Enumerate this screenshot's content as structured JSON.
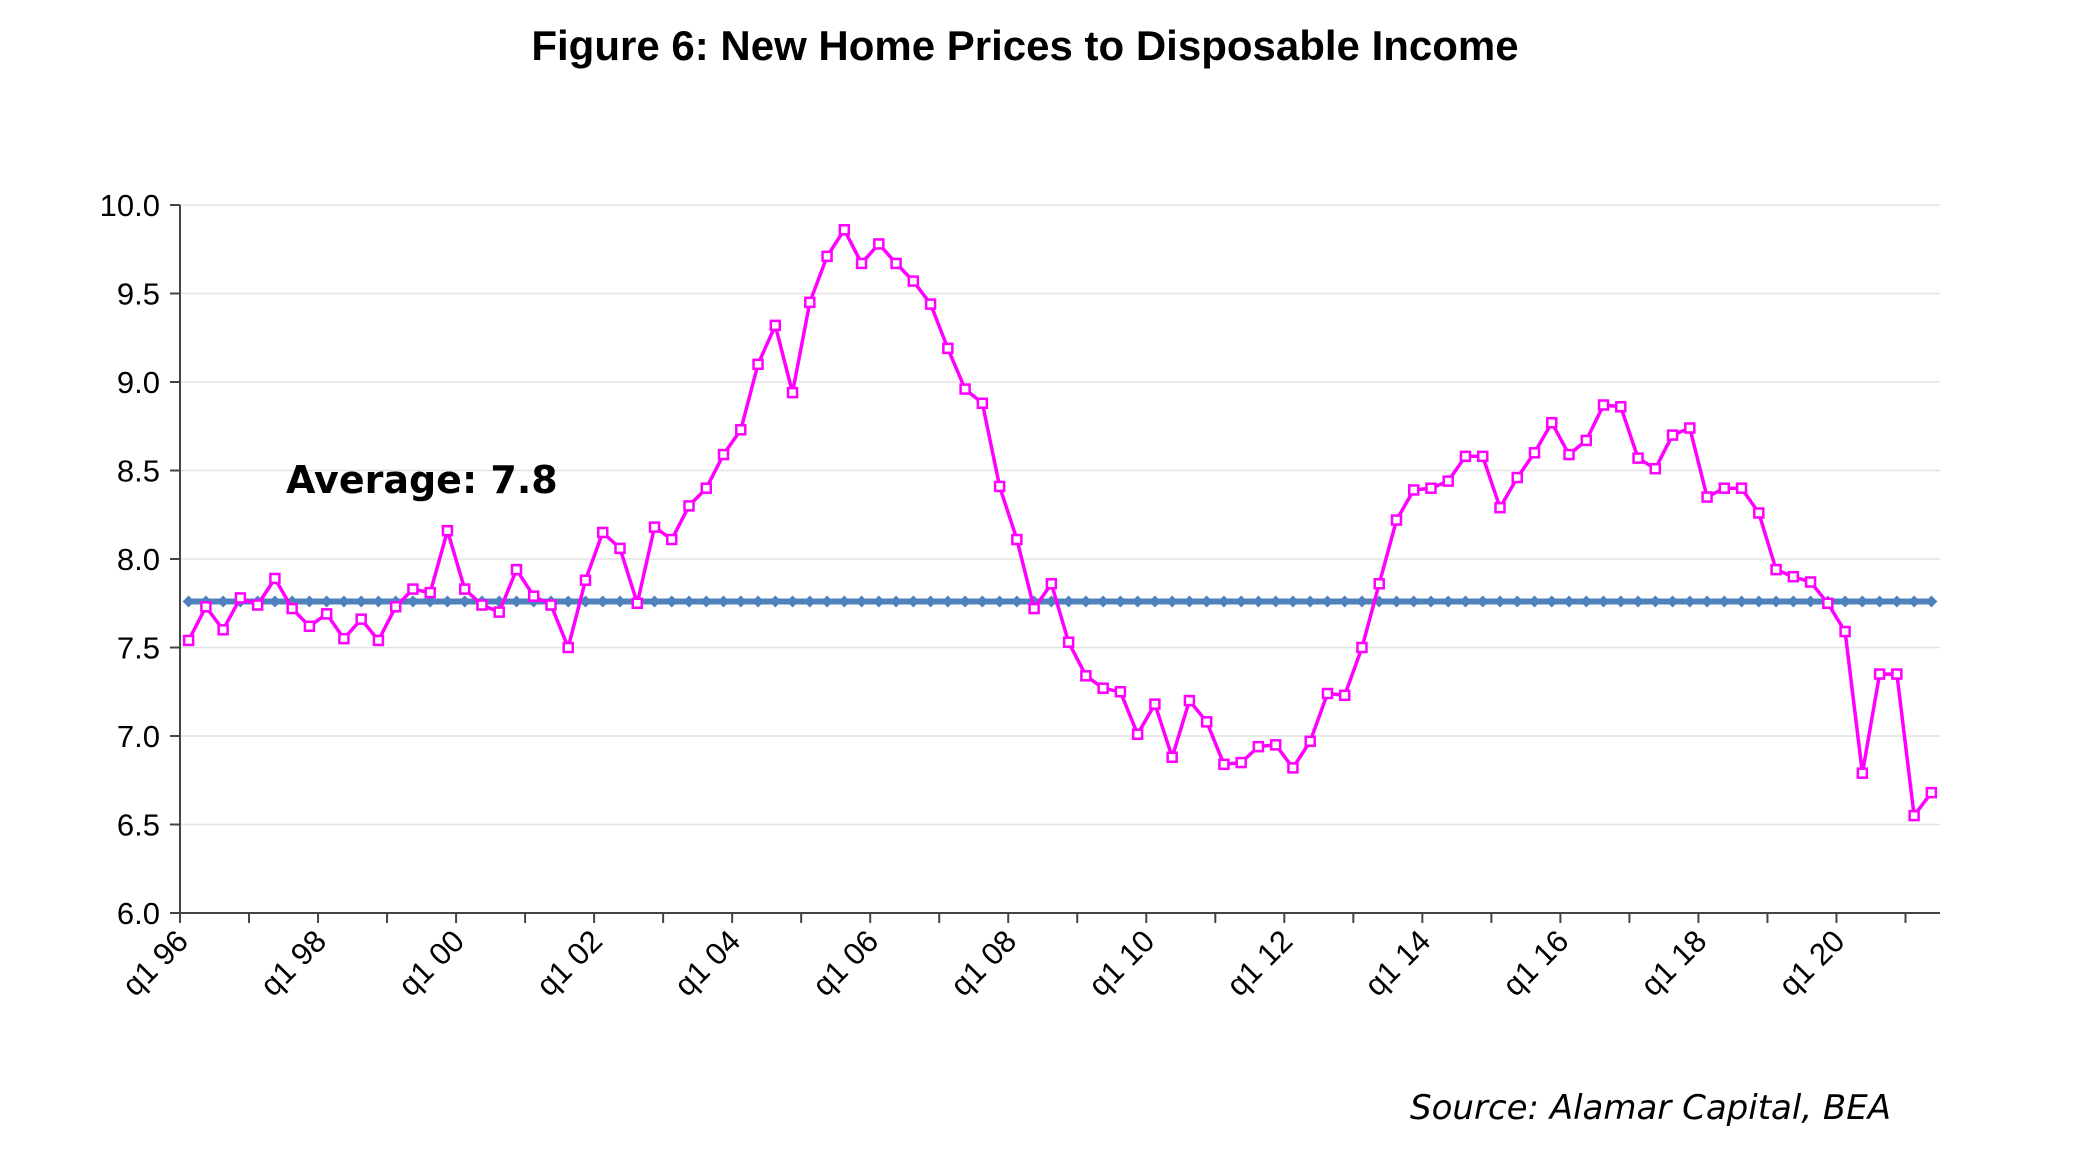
{
  "chart_data": {
    "type": "line",
    "title": "Figure 6:  New Home Prices to Disposable Income",
    "ylim": [
      6.0,
      10.0
    ],
    "y_ticks": [
      "6.0",
      "6.5",
      "7.0",
      "7.5",
      "8.0",
      "8.5",
      "9.0",
      "9.5",
      "10.0"
    ],
    "x_tick_labels": [
      "q1 96",
      "q1 98",
      "q1 00",
      "q1 02",
      "q1 04",
      "q1 06",
      "q1 08",
      "q1 10",
      "q1 12",
      "q1 14",
      "q1 16",
      "q1 18",
      "q1 20"
    ],
    "grid": true,
    "annotation": "Average: 7.8",
    "series": [
      {
        "color": "#ff00ff",
        "marker": "square",
        "values": [
          7.54,
          7.73,
          7.6,
          7.78,
          7.74,
          7.89,
          7.72,
          7.62,
          7.69,
          7.55,
          7.66,
          7.54,
          7.73,
          7.83,
          7.81,
          8.16,
          7.83,
          7.74,
          7.7,
          7.94,
          7.79,
          7.74,
          7.5,
          7.88,
          8.15,
          8.06,
          7.75,
          8.18,
          8.11,
          8.3,
          8.4,
          8.59,
          8.73,
          9.1,
          9.32,
          8.94,
          9.45,
          9.71,
          9.86,
          9.67,
          9.78,
          9.67,
          9.57,
          9.44,
          9.19,
          8.96,
          8.88,
          8.41,
          8.11,
          7.72,
          7.86,
          7.53,
          7.34,
          7.27,
          7.25,
          7.01,
          7.18,
          6.88,
          7.2,
          7.08,
          6.84,
          6.85,
          6.94,
          6.95,
          6.82,
          6.97,
          7.24,
          7.23,
          7.5,
          7.86,
          8.22,
          8.39,
          8.4,
          8.44,
          8.58,
          8.58,
          8.29,
          8.46,
          8.6,
          8.77,
          8.59,
          8.67,
          8.87,
          8.86,
          8.57,
          8.51,
          8.7,
          8.74,
          8.35,
          8.4,
          8.4,
          8.26,
          7.94,
          7.9,
          7.87,
          7.75,
          7.59,
          6.79,
          7.35,
          7.35,
          6.55,
          6.68
        ]
      },
      {
        "color": "#4f81bd",
        "marker": "diamond",
        "constant_value": 7.76
      }
    ]
  },
  "source": "Source:  Alamar Capital, BEA"
}
